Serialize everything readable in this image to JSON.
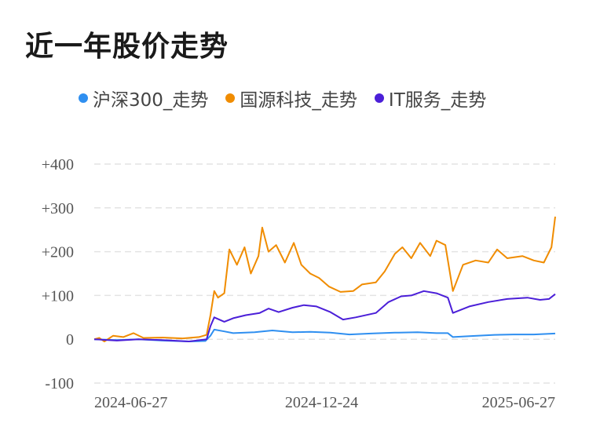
{
  "title": "近一年股价走势",
  "chart_data": {
    "type": "line",
    "title": "近一年股价走势",
    "legend_position": "top",
    "grid": true,
    "ylim": [
      -100,
      400
    ],
    "y_ticks": [
      "+400",
      "+300",
      "+200",
      "+100",
      "0",
      "-100"
    ],
    "y_tick_values": [
      400,
      300,
      200,
      100,
      0,
      -100
    ],
    "x_tick_labels": [
      "2024-06-27",
      "2024-12-24",
      "2025-06-27"
    ],
    "x_range": [
      "2024-06-27",
      "2025-06-27"
    ],
    "series": [
      {
        "name": "沪深300_走势",
        "color": "#2f8ff0",
        "points": [
          [
            "2024-06-27",
            0
          ],
          [
            "2024-07-15",
            -2
          ],
          [
            "2024-08-01",
            0
          ],
          [
            "2024-08-20",
            -3
          ],
          [
            "2024-09-10",
            -5
          ],
          [
            "2024-09-23",
            -4
          ],
          [
            "2024-09-27",
            8
          ],
          [
            "2024-09-30",
            22
          ],
          [
            "2024-10-08",
            18
          ],
          [
            "2024-10-15",
            14
          ],
          [
            "2024-11-01",
            16
          ],
          [
            "2024-11-15",
            20
          ],
          [
            "2024-12-01",
            16
          ],
          [
            "2024-12-15",
            17
          ],
          [
            "2024-12-31",
            15
          ],
          [
            "2025-01-15",
            11
          ],
          [
            "2025-02-01",
            13
          ],
          [
            "2025-02-20",
            15
          ],
          [
            "2025-03-10",
            16
          ],
          [
            "2025-03-25",
            14
          ],
          [
            "2025-04-03",
            14
          ],
          [
            "2025-04-07",
            5
          ],
          [
            "2025-04-20",
            7
          ],
          [
            "2025-05-10",
            10
          ],
          [
            "2025-05-25",
            11
          ],
          [
            "2025-06-10",
            11
          ],
          [
            "2025-06-27",
            13
          ]
        ]
      },
      {
        "name": "国源科技_走势",
        "color": "#f08c00",
        "points": [
          [
            "2024-06-27",
            0
          ],
          [
            "2024-07-01",
            3
          ],
          [
            "2024-07-05",
            -5
          ],
          [
            "2024-07-12",
            8
          ],
          [
            "2024-07-20",
            5
          ],
          [
            "2024-07-28",
            14
          ],
          [
            "2024-08-05",
            3
          ],
          [
            "2024-08-20",
            4
          ],
          [
            "2024-09-05",
            2
          ],
          [
            "2024-09-18",
            5
          ],
          [
            "2024-09-24",
            10
          ],
          [
            "2024-09-27",
            55
          ],
          [
            "2024-09-30",
            110
          ],
          [
            "2024-10-03",
            95
          ],
          [
            "2024-10-08",
            105
          ],
          [
            "2024-10-12",
            205
          ],
          [
            "2024-10-18",
            170
          ],
          [
            "2024-10-24",
            210
          ],
          [
            "2024-10-29",
            150
          ],
          [
            "2024-11-04",
            190
          ],
          [
            "2024-11-07",
            255
          ],
          [
            "2024-11-12",
            200
          ],
          [
            "2024-11-18",
            215
          ],
          [
            "2024-11-25",
            175
          ],
          [
            "2024-12-02",
            220
          ],
          [
            "2024-12-08",
            170
          ],
          [
            "2024-12-15",
            150
          ],
          [
            "2024-12-22",
            140
          ],
          [
            "2024-12-30",
            120
          ],
          [
            "2025-01-08",
            108
          ],
          [
            "2025-01-18",
            110
          ],
          [
            "2025-01-25",
            125
          ],
          [
            "2025-02-05",
            130
          ],
          [
            "2025-02-12",
            155
          ],
          [
            "2025-02-20",
            195
          ],
          [
            "2025-02-26",
            210
          ],
          [
            "2025-03-05",
            185
          ],
          [
            "2025-03-12",
            220
          ],
          [
            "2025-03-20",
            190
          ],
          [
            "2025-03-25",
            225
          ],
          [
            "2025-04-01",
            215
          ],
          [
            "2025-04-07",
            110
          ],
          [
            "2025-04-15",
            170
          ],
          [
            "2025-04-25",
            180
          ],
          [
            "2025-05-05",
            175
          ],
          [
            "2025-05-12",
            205
          ],
          [
            "2025-05-20",
            185
          ],
          [
            "2025-06-01",
            190
          ],
          [
            "2025-06-10",
            180
          ],
          [
            "2025-06-18",
            175
          ],
          [
            "2025-06-24",
            210
          ],
          [
            "2025-06-27",
            280
          ]
        ]
      },
      {
        "name": "IT服务_走势",
        "color": "#4b1fd8",
        "points": [
          [
            "2024-06-27",
            0
          ],
          [
            "2024-07-15",
            -3
          ],
          [
            "2024-08-01",
            0
          ],
          [
            "2024-08-20",
            -2
          ],
          [
            "2024-09-10",
            -5
          ],
          [
            "2024-09-24",
            0
          ],
          [
            "2024-09-27",
            30
          ],
          [
            "2024-09-30",
            50
          ],
          [
            "2024-10-08",
            40
          ],
          [
            "2024-10-15",
            48
          ],
          [
            "2024-10-25",
            55
          ],
          [
            "2024-11-05",
            60
          ],
          [
            "2024-11-12",
            70
          ],
          [
            "2024-11-20",
            62
          ],
          [
            "2024-12-01",
            72
          ],
          [
            "2024-12-10",
            78
          ],
          [
            "2024-12-20",
            75
          ],
          [
            "2024-12-31",
            62
          ],
          [
            "2025-01-10",
            45
          ],
          [
            "2025-01-20",
            50
          ],
          [
            "2025-02-05",
            60
          ],
          [
            "2025-02-15",
            85
          ],
          [
            "2025-02-25",
            98
          ],
          [
            "2025-03-05",
            100
          ],
          [
            "2025-03-15",
            110
          ],
          [
            "2025-03-25",
            105
          ],
          [
            "2025-04-03",
            95
          ],
          [
            "2025-04-07",
            60
          ],
          [
            "2025-04-20",
            75
          ],
          [
            "2025-05-05",
            85
          ],
          [
            "2025-05-20",
            92
          ],
          [
            "2025-06-05",
            95
          ],
          [
            "2025-06-15",
            90
          ],
          [
            "2025-06-22",
            92
          ],
          [
            "2025-06-27",
            103
          ]
        ]
      }
    ]
  }
}
